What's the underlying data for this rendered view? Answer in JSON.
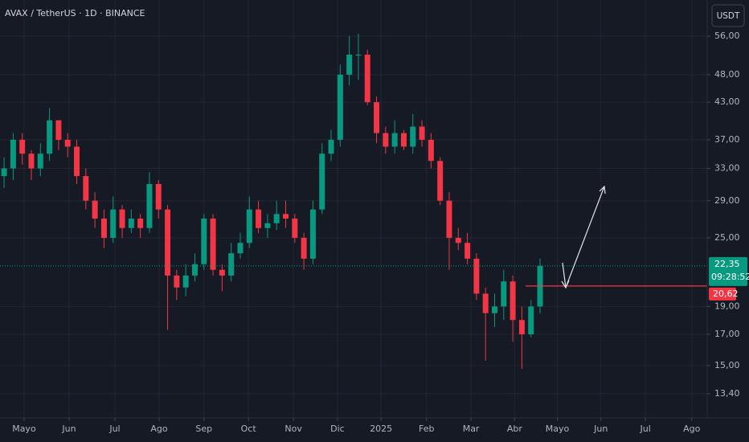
{
  "chart_data": {
    "type": "candlestick",
    "title": "AVAX / TetherUS · 1D · BINANCE",
    "currency_button": "USDT",
    "log_scale": true,
    "grid": true,
    "up_color": "#089981",
    "down_color": "#f23645",
    "open": [
      32,
      33,
      37,
      35,
      33,
      35,
      40,
      37,
      36,
      32,
      29,
      27,
      25,
      28,
      26,
      27,
      26,
      31,
      28,
      21.5,
      20.5,
      21.5,
      22.5,
      27,
      22,
      21.5,
      23.5,
      24.5,
      28,
      26,
      26.5,
      27.5,
      27,
      25,
      23,
      28,
      35,
      37,
      48,
      52,
      52,
      43,
      38,
      36,
      38,
      36,
      39,
      37,
      34,
      29,
      25,
      24.5,
      23,
      20,
      18.5,
      19,
      21,
      18,
      17,
      19
    ],
    "high": [
      34.5,
      38,
      38,
      35.5,
      36.5,
      42,
      40,
      38,
      37,
      33,
      30,
      28,
      29.5,
      28.5,
      28,
      27.5,
      32.5,
      31.5,
      28.5,
      22,
      22.5,
      23.5,
      27.5,
      27.5,
      22.5,
      24.5,
      25.5,
      29.5,
      29,
      27.5,
      29,
      29,
      27.5,
      25.5,
      29,
      36.5,
      38.5,
      50,
      56,
      56.5,
      53,
      44,
      39,
      40,
      38.5,
      41,
      40,
      38,
      34.5,
      30,
      26,
      25.5,
      23.5,
      20.5,
      20,
      22,
      21.5,
      19,
      19.5,
      23
    ],
    "low": [
      30.5,
      31.5,
      33.5,
      31.5,
      32,
      34,
      35.5,
      34.5,
      31,
      28,
      26,
      24,
      24.5,
      25,
      25.5,
      25,
      25.5,
      27,
      17.3,
      19.5,
      19.8,
      21,
      22,
      21.5,
      20.2,
      21,
      23,
      24,
      25.5,
      25,
      25.8,
      26,
      24.5,
      22,
      22.5,
      27.5,
      34,
      36,
      46,
      47,
      42.5,
      36.5,
      35,
      35,
      35.5,
      35,
      36,
      33,
      28.5,
      22,
      23.8,
      22.5,
      19.5,
      15.3,
      17.5,
      18,
      16.5,
      14.8,
      16.8,
      18.5
    ],
    "close": [
      33,
      37,
      35,
      33,
      35,
      40,
      37,
      36,
      32,
      29,
      27,
      25,
      28,
      26,
      27,
      26,
      31,
      28,
      21.5,
      20.5,
      21.5,
      22.5,
      27,
      22,
      21.5,
      23.5,
      24.5,
      28,
      26,
      26.5,
      27.5,
      27,
      25,
      23,
      28,
      35,
      37,
      48,
      52,
      52,
      43,
      38,
      36,
      38,
      36,
      39,
      37,
      34,
      29,
      25,
      24.5,
      23,
      20,
      18.5,
      19,
      21,
      18,
      17,
      19,
      22.35
    ],
    "xlim": [
      -0.45,
      77.4
    ],
    "xticks": [
      {
        "value": 2.2,
        "label": "Mayo"
      },
      {
        "value": 7.16,
        "label": "Jun"
      },
      {
        "value": 12.2,
        "label": "Jul"
      },
      {
        "value": 17.07,
        "label": "Ago"
      },
      {
        "value": 22.0,
        "label": "Sep"
      },
      {
        "value": 26.9,
        "label": "Oct"
      },
      {
        "value": 31.85,
        "label": "Nov"
      },
      {
        "value": 36.7,
        "label": "Dic"
      },
      {
        "value": 41.5,
        "label": "2025"
      },
      {
        "value": 46.5,
        "label": "Feb"
      },
      {
        "value": 51.4,
        "label": "Mar"
      },
      {
        "value": 56.2,
        "label": "Abr"
      },
      {
        "value": 60.9,
        "label": "Mayo"
      },
      {
        "value": 65.7,
        "label": "Jun"
      },
      {
        "value": 70.6,
        "label": "Jul"
      },
      {
        "value": 75.7,
        "label": "Ago"
      }
    ],
    "ylim": [
      12.17,
      64.7
    ],
    "yticks": [
      {
        "value": 56,
        "label": "56,00"
      },
      {
        "value": 48,
        "label": "48,00"
      },
      {
        "value": 43,
        "label": "43,00"
      },
      {
        "value": 37,
        "label": "37,00"
      },
      {
        "value": 33,
        "label": "33,00"
      },
      {
        "value": 29,
        "label": "29,00"
      },
      {
        "value": 25,
        "label": "25,00"
      },
      {
        "value": 19,
        "label": "19,00"
      },
      {
        "value": 17,
        "label": "17,00"
      },
      {
        "value": 15,
        "label": "15,00"
      },
      {
        "value": 13.4,
        "label": "13,40"
      }
    ],
    "last_price": {
      "value": 22.35,
      "label": "22,35"
    },
    "countdown": "09:28:52",
    "level": {
      "value": 20.62,
      "label": "20,62",
      "color": "#f23645"
    }
  }
}
